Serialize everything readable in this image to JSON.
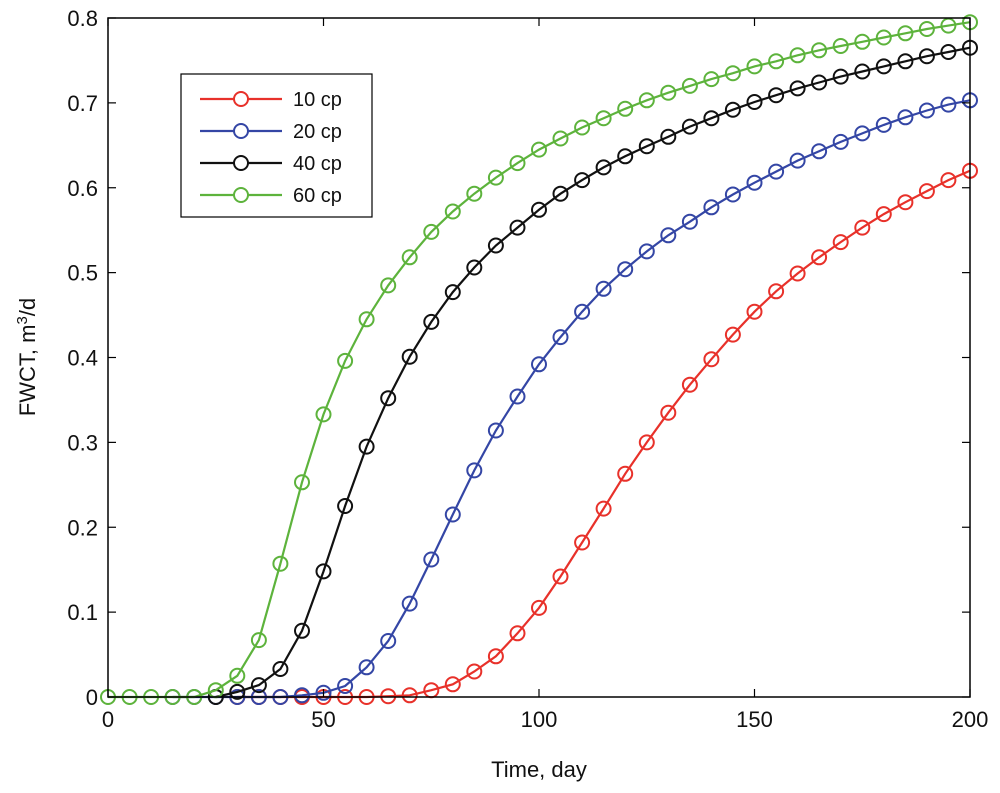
{
  "chart_data": {
    "type": "line",
    "title": "",
    "xlabel": "Time, day",
    "ylabel": {
      "prefix": "FWCT, m",
      "superscript": "3",
      "suffix": "/d"
    },
    "xlim": [
      0,
      200
    ],
    "ylim": [
      0,
      0.8
    ],
    "xticks": [
      "0",
      "50",
      "100",
      "150",
      "200"
    ],
    "yticks": [
      "0",
      "0.1",
      "0.2",
      "0.3",
      "0.4",
      "0.5",
      "0.6",
      "0.7",
      "0.8"
    ],
    "grid": false,
    "legend_position": "top-left",
    "x": [
      0,
      5,
      10,
      15,
      20,
      25,
      30,
      35,
      40,
      45,
      50,
      55,
      60,
      65,
      70,
      75,
      80,
      85,
      90,
      95,
      100,
      105,
      110,
      115,
      120,
      125,
      130,
      135,
      140,
      145,
      150,
      155,
      160,
      165,
      170,
      175,
      180,
      185,
      190,
      195,
      200
    ],
    "series": [
      {
        "name": "10 cp",
        "color": "#e8312a",
        "values": [
          null,
          null,
          null,
          null,
          null,
          null,
          0,
          0,
          0,
          0,
          0,
          0,
          0,
          0.001,
          0.002,
          0.008,
          0.015,
          0.03,
          0.048,
          0.075,
          0.105,
          0.142,
          0.182,
          0.222,
          0.263,
          0.3,
          0.335,
          0.368,
          0.398,
          0.427,
          0.454,
          0.478,
          0.499,
          0.518,
          0.536,
          0.553,
          0.569,
          0.583,
          0.596,
          0.609,
          0.62
        ]
      },
      {
        "name": "20 cp",
        "color": "#3446a5",
        "values": [
          null,
          null,
          null,
          0,
          0,
          0,
          0,
          0,
          0,
          0.002,
          0.005,
          0.013,
          0.035,
          0.066,
          0.11,
          0.162,
          0.215,
          0.267,
          0.314,
          0.354,
          0.392,
          0.424,
          0.454,
          0.481,
          0.504,
          0.525,
          0.544,
          0.56,
          0.577,
          0.592,
          0.606,
          0.619,
          0.632,
          0.643,
          0.654,
          0.664,
          0.674,
          0.683,
          0.691,
          0.698,
          0.703
        ]
      },
      {
        "name": "40 cp",
        "color": "#111111",
        "values": [
          null,
          null,
          null,
          null,
          null,
          0,
          0.006,
          0.014,
          0.033,
          0.078,
          0.148,
          0.225,
          0.295,
          0.352,
          0.401,
          0.442,
          0.477,
          0.506,
          0.532,
          0.553,
          0.574,
          0.593,
          0.609,
          0.624,
          0.637,
          0.649,
          0.66,
          0.672,
          0.682,
          0.692,
          0.701,
          0.709,
          0.717,
          0.724,
          0.731,
          0.737,
          0.743,
          0.749,
          0.755,
          0.76,
          0.765
        ]
      },
      {
        "name": "60 cp",
        "color": "#5db33c",
        "values": [
          0,
          0,
          0,
          0,
          0,
          0.008,
          0.025,
          0.067,
          0.157,
          0.253,
          0.333,
          0.396,
          0.445,
          0.485,
          0.518,
          0.548,
          0.572,
          0.593,
          0.612,
          0.629,
          0.645,
          0.658,
          0.671,
          0.682,
          0.693,
          0.703,
          0.712,
          0.72,
          0.728,
          0.735,
          0.743,
          0.749,
          0.756,
          0.762,
          0.767,
          0.772,
          0.777,
          0.782,
          0.787,
          0.791,
          0.795
        ]
      }
    ]
  }
}
